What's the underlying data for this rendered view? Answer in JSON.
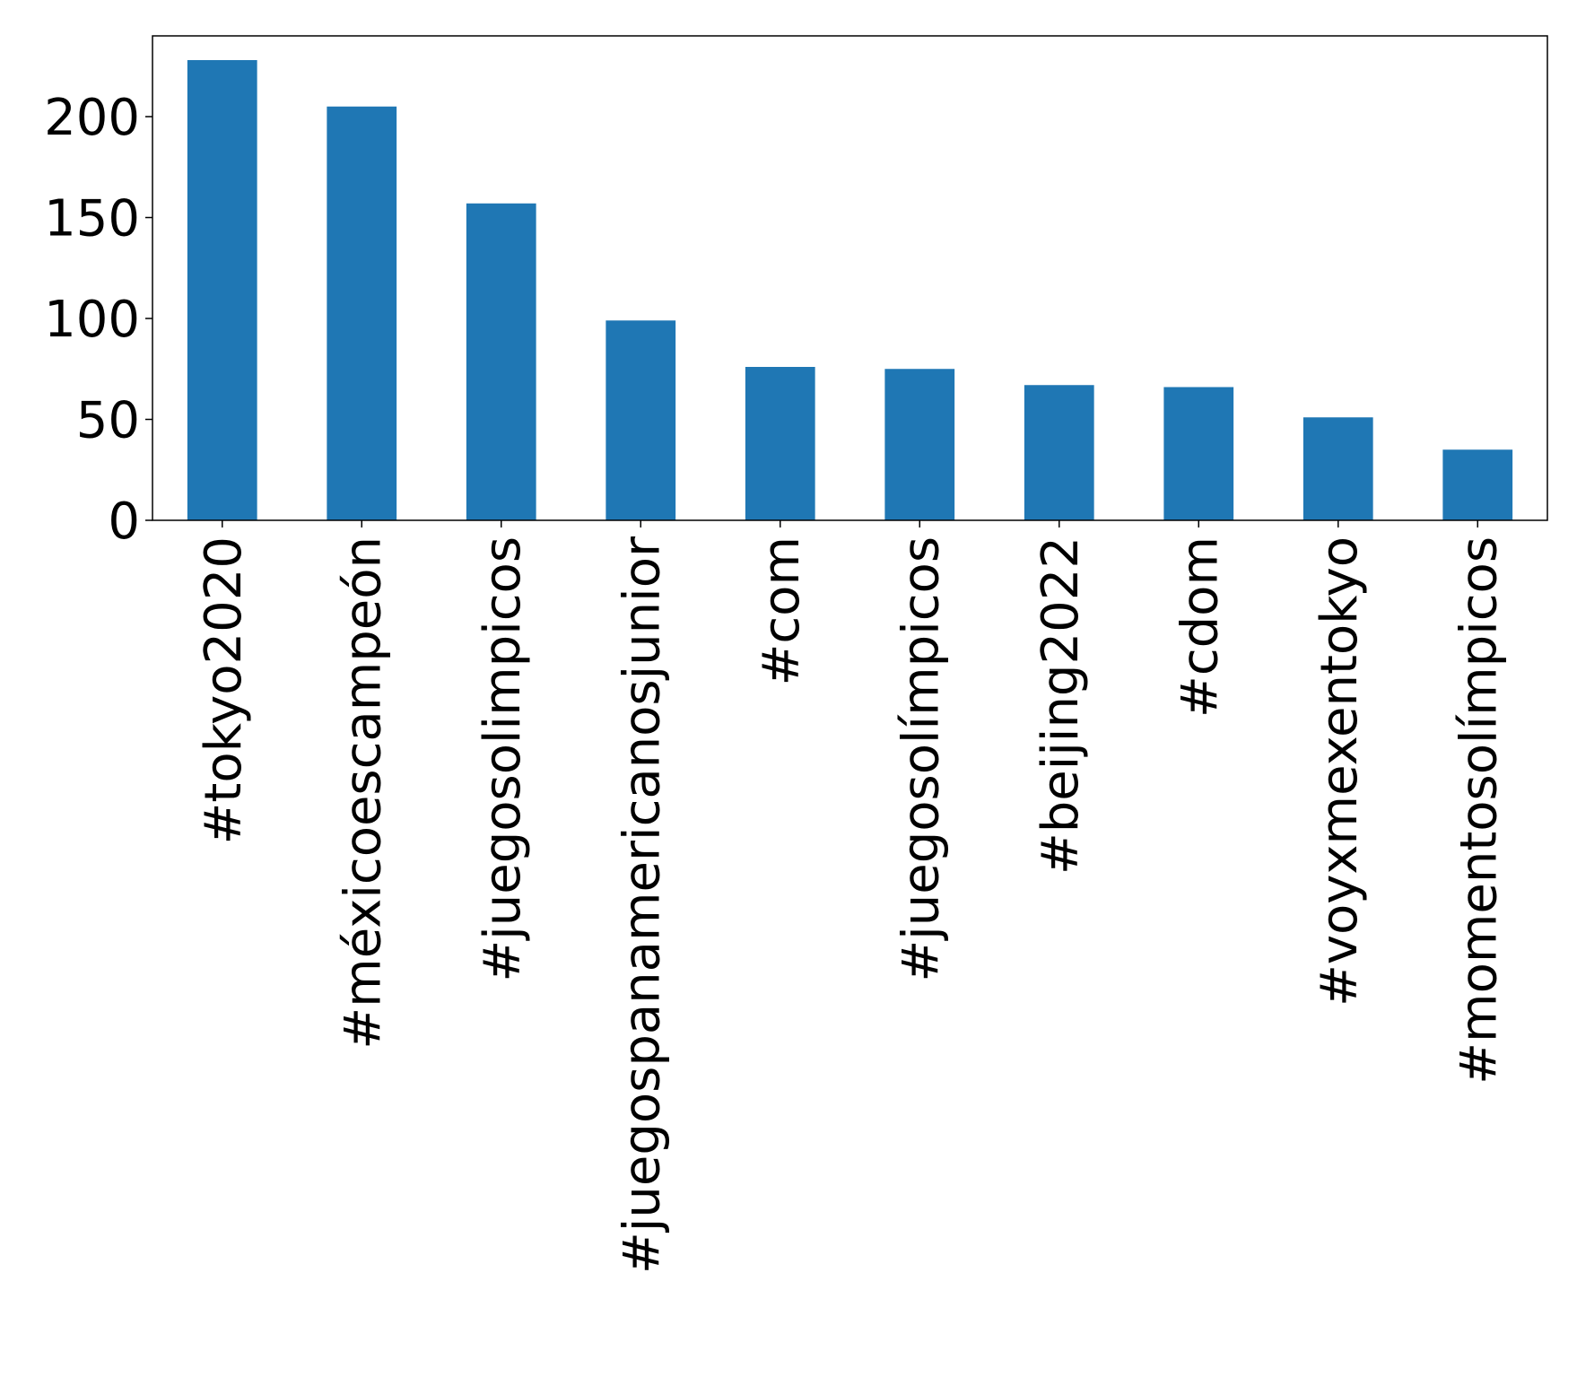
{
  "chart_data": {
    "type": "bar",
    "title": "",
    "xlabel": "",
    "ylabel": "",
    "categories": [
      "#tokyo2020",
      "#méxicoescampeón",
      "#juegosolimpicos",
      "#juegospanamericanosjunior",
      "#com",
      "#juegosolímpicos",
      "#beijing2022",
      "#cdom",
      "#voyxmexentokyo",
      "#momentosolímpicos"
    ],
    "values": [
      228,
      205,
      157,
      99,
      76,
      75,
      67,
      66,
      51,
      35
    ],
    "ylim": [
      0,
      240
    ],
    "yticks": [
      0,
      50,
      100,
      150,
      200
    ],
    "grid": false,
    "legend": "none",
    "bar_color": "#1f77b4"
  }
}
